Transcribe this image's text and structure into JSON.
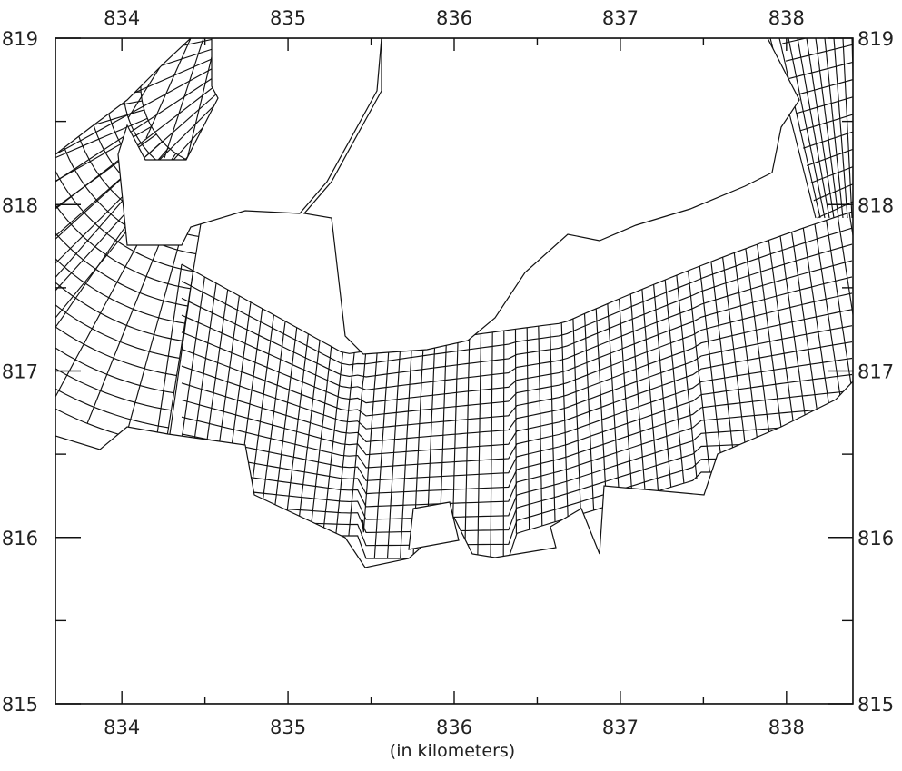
{
  "chart_data": {
    "type": "map",
    "xlabel": "(in kilometers)",
    "xlim": [
      833.6,
      838.4
    ],
    "ylim": [
      815,
      819
    ],
    "x_ticks": [
      "834",
      "835",
      "836",
      "837",
      "838"
    ],
    "y_ticks": [
      "815",
      "816",
      "817",
      "818",
      "819"
    ],
    "x_ticks_top": [
      "834",
      "835",
      "836",
      "837",
      "838"
    ],
    "y_ticks_right": [
      "815",
      "816",
      "817",
      "818",
      "819"
    ],
    "x_minor_step": 0.5,
    "y_minor_step": 0.5,
    "grid": true
  },
  "colors": {
    "ink": "#111111",
    "background": "#ffffff"
  }
}
